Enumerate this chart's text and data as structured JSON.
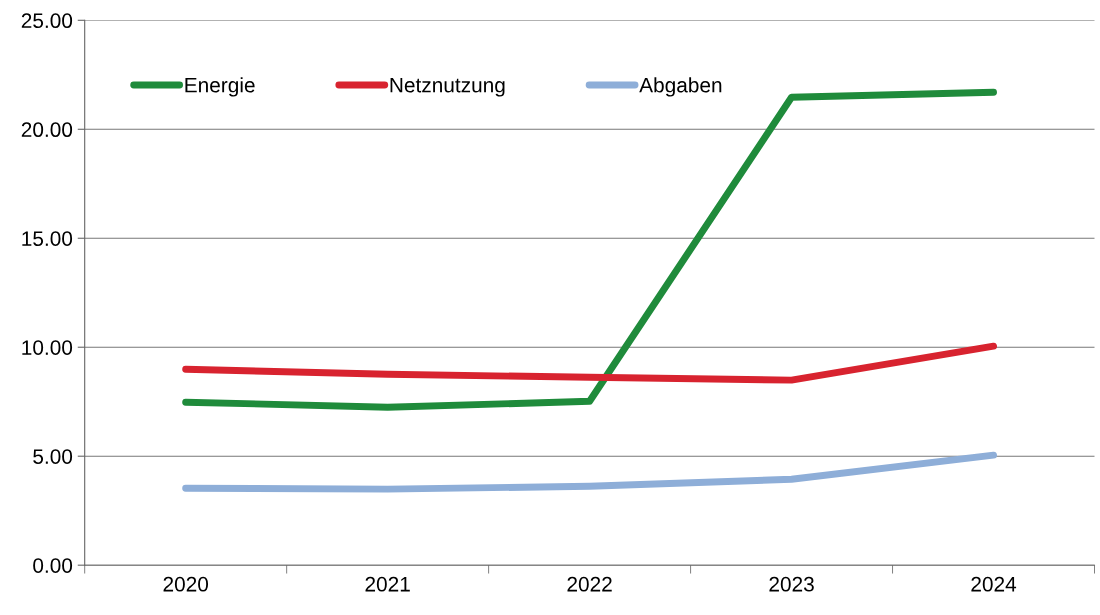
{
  "chart_data": {
    "type": "line",
    "categories": [
      "2020",
      "2021",
      "2022",
      "2023",
      "2024"
    ],
    "series": [
      {
        "name": "Energie",
        "color": "#1f8b3b",
        "values": [
          7.48,
          7.25,
          7.52,
          21.47,
          21.7
        ]
      },
      {
        "name": "Netznutzung",
        "color": "#d8232f",
        "values": [
          8.99,
          8.76,
          8.62,
          8.49,
          10.05
        ]
      },
      {
        "name": "Abgaben",
        "color": "#8eaed8",
        "values": [
          3.53,
          3.49,
          3.62,
          3.94,
          5.05
        ]
      }
    ],
    "ylim": [
      0,
      25
    ],
    "yticks": [
      {
        "value": 0,
        "label": "0.00"
      },
      {
        "value": 5,
        "label": "5.00"
      },
      {
        "value": 10,
        "label": "10.00"
      },
      {
        "value": 15,
        "label": "15.00"
      },
      {
        "value": 20,
        "label": "20.00"
      },
      {
        "value": 25,
        "label": "25.00"
      }
    ],
    "grid": "y",
    "legend": "top left",
    "marker": "none",
    "line_style": "solid"
  }
}
